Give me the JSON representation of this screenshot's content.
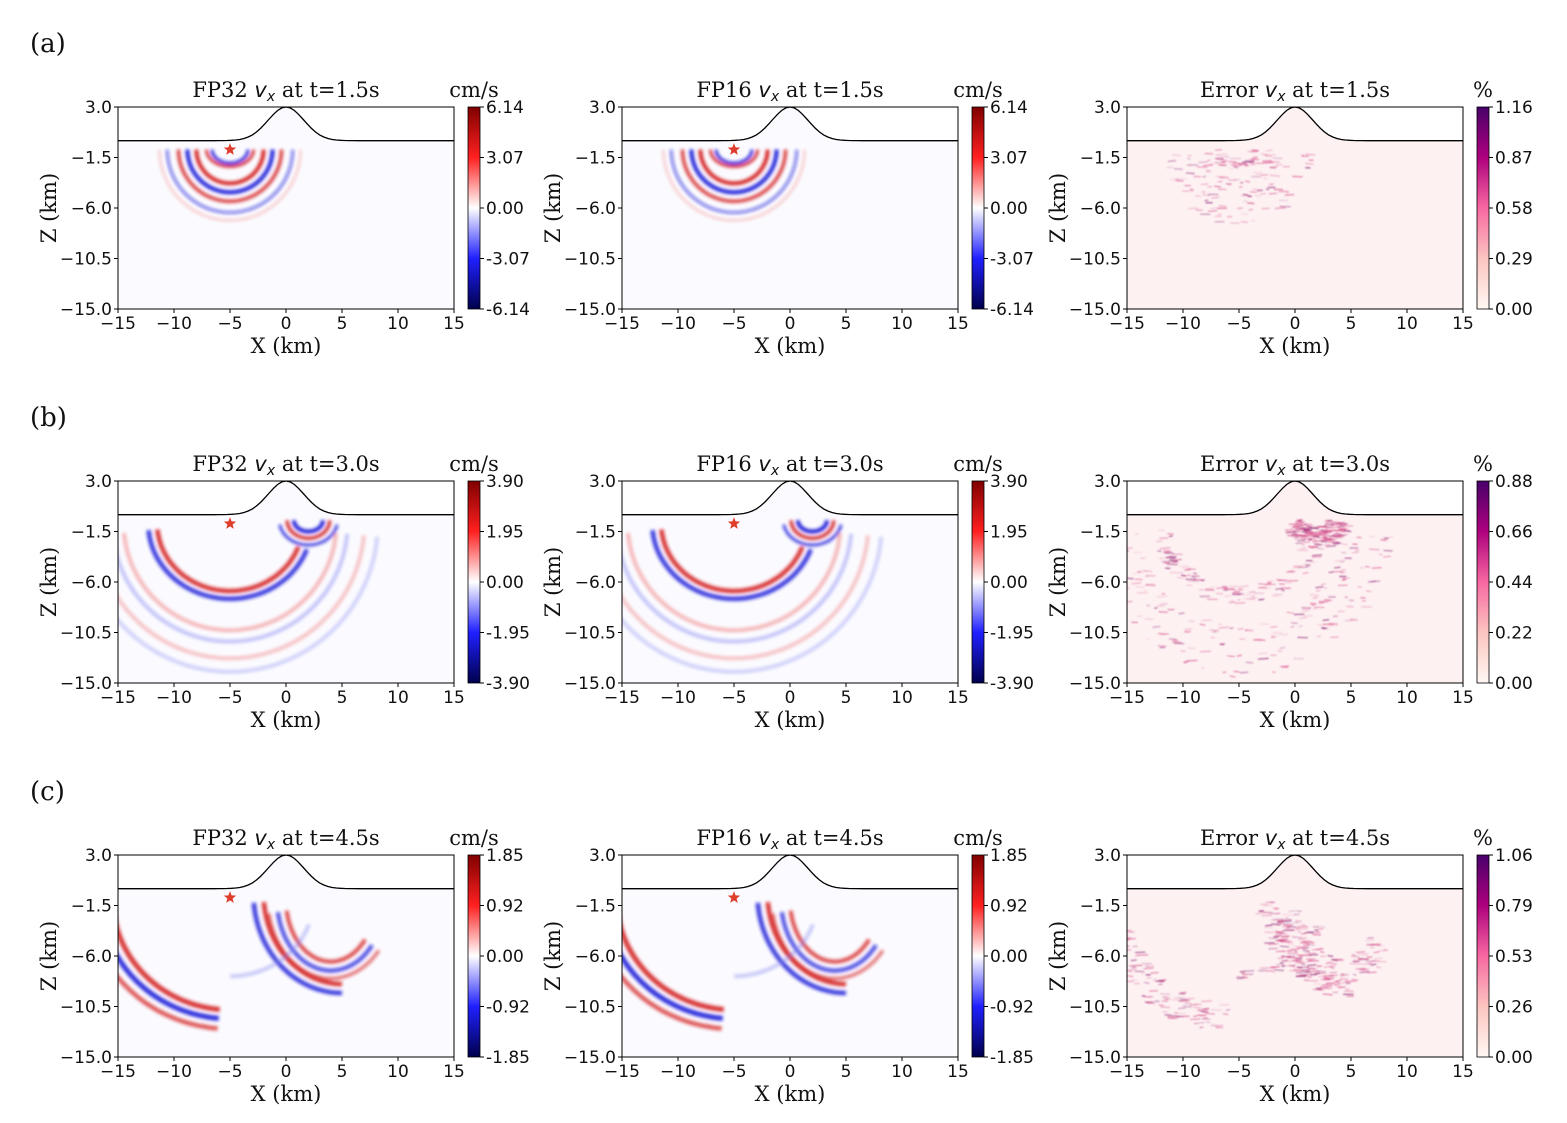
{
  "chart_data": {
    "type": "heatmap",
    "xlabel": "X (km)",
    "ylabel": "Z (km)",
    "xlim": [
      -15,
      15
    ],
    "ylim": [
      -15.0,
      3.0
    ],
    "x_ticks": [
      "−15",
      "−10",
      "−5",
      "0",
      "5",
      "10",
      "15"
    ],
    "y_ticks": [
      "3.0",
      "−1.5",
      "−6.0",
      "−10.5",
      "−15.0"
    ],
    "source": {
      "x": -5,
      "z": -0.8,
      "marker": "star",
      "color": "#e03c2a"
    },
    "topography": "gaussian hill peak z=3.0 at x=0 over flat surface z=0.0",
    "rows": [
      {
        "label": "(a)",
        "time": "1.5s",
        "panels": [
          {
            "title_prefix": "FP32",
            "title_suffix": "at t=1.5s",
            "unit": "cm/s",
            "colormap": "seismic",
            "colorbar_ticks": [
              "6.14",
              "3.07",
              "0.00",
              "-3.07",
              "-6.14"
            ],
            "vmin": -6.14,
            "vmax": 6.14
          },
          {
            "title_prefix": "FP16",
            "title_suffix": "at t=1.5s",
            "unit": "cm/s",
            "colormap": "seismic",
            "colorbar_ticks": [
              "6.14",
              "3.07",
              "0.00",
              "-3.07",
              "-6.14"
            ],
            "vmin": -6.14,
            "vmax": 6.14
          },
          {
            "title_prefix": "Error",
            "title_suffix": "at t=1.5s",
            "unit": "%",
            "colormap": "RdPu",
            "colorbar_ticks": [
              "1.16",
              "0.87",
              "0.58",
              "0.29",
              "0.00"
            ],
            "vmin": 0.0,
            "vmax": 1.16
          }
        ]
      },
      {
        "label": "(b)",
        "time": "3.0s",
        "panels": [
          {
            "title_prefix": "FP32",
            "title_suffix": "at t=3.0s",
            "unit": "cm/s",
            "colormap": "seismic",
            "colorbar_ticks": [
              "3.90",
              "1.95",
              "0.00",
              "-1.95",
              "-3.90"
            ],
            "vmin": -3.9,
            "vmax": 3.9
          },
          {
            "title_prefix": "FP16",
            "title_suffix": "at t=3.0s",
            "unit": "cm/s",
            "colormap": "seismic",
            "colorbar_ticks": [
              "3.90",
              "1.95",
              "0.00",
              "-1.95",
              "-3.90"
            ],
            "vmin": -3.9,
            "vmax": 3.9
          },
          {
            "title_prefix": "Error",
            "title_suffix": "at t=3.0s",
            "unit": "%",
            "colormap": "RdPu",
            "colorbar_ticks": [
              "0.88",
              "0.66",
              "0.44",
              "0.22",
              "0.00"
            ],
            "vmin": 0.0,
            "vmax": 0.88
          }
        ]
      },
      {
        "label": "(c)",
        "time": "4.5s",
        "panels": [
          {
            "title_prefix": "FP32",
            "title_suffix": "at t=4.5s",
            "unit": "cm/s",
            "colormap": "seismic",
            "colorbar_ticks": [
              "1.85",
              "0.92",
              "0.00",
              "-0.92",
              "-1.85"
            ],
            "vmin": -1.85,
            "vmax": 1.85
          },
          {
            "title_prefix": "FP16",
            "title_suffix": "at t=4.5s",
            "unit": "cm/s",
            "colormap": "seismic",
            "colorbar_ticks": [
              "1.85",
              "0.92",
              "0.00",
              "-0.92",
              "-1.85"
            ],
            "vmin": -1.85,
            "vmax": 1.85
          },
          {
            "title_prefix": "Error",
            "title_suffix": "at t=4.5s",
            "unit": "%",
            "colormap": "RdPu",
            "colorbar_ticks": [
              "1.06",
              "0.79",
              "0.53",
              "0.26",
              "0.00"
            ],
            "vmin": 0.0,
            "vmax": 1.06
          }
        ]
      }
    ]
  }
}
